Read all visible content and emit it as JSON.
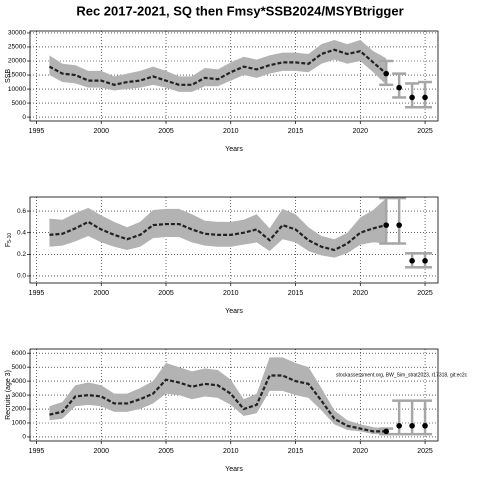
{
  "chart_data": [
    {
      "type": "line",
      "title": "Rec 2017-2021, SQ then Fmsy*SSB2024/MSYBtrigger",
      "xlabel": "Years",
      "ylabel": "SSB",
      "x": [
        1996,
        1997,
        1998,
        1999,
        2000,
        2001,
        2002,
        2003,
        2004,
        2005,
        2006,
        2007,
        2008,
        2009,
        2010,
        2011,
        2012,
        2013,
        2014,
        2015,
        2016,
        2017,
        2018,
        2019,
        2020,
        2021,
        2022
      ],
      "values": [
        18000,
        15500,
        15000,
        13000,
        13000,
        11500,
        12500,
        13000,
        14500,
        13000,
        11500,
        11500,
        14000,
        13500,
        16000,
        18000,
        17000,
        18500,
        19500,
        19500,
        19000,
        22500,
        24000,
        22500,
        23500,
        19500,
        15500
      ],
      "lower": [
        15000,
        12500,
        12000,
        10500,
        10500,
        9500,
        10000,
        10500,
        11500,
        10500,
        9000,
        9000,
        11000,
        11000,
        13000,
        15000,
        14000,
        15500,
        16500,
        16500,
        16000,
        19000,
        20500,
        19000,
        20000,
        16000,
        11500
      ],
      "upper": [
        22000,
        19000,
        18500,
        16500,
        16500,
        14500,
        15500,
        16500,
        18000,
        16500,
        14500,
        14500,
        17500,
        17000,
        19500,
        21500,
        20500,
        22000,
        23000,
        23000,
        22500,
        26000,
        27500,
        26000,
        27500,
        23500,
        21000
      ],
      "proj_x": [
        2022,
        2023,
        2024,
        2025
      ],
      "proj_values": [
        15500,
        10500,
        7000,
        7000
      ],
      "proj_lower": [
        11500,
        7000,
        3500,
        3500
      ],
      "proj_upper": [
        20000,
        15500,
        12000,
        12500
      ],
      "xlim": [
        1994.5,
        2026
      ],
      "xticks": [
        1995,
        2000,
        2005,
        2010,
        2015,
        2020,
        2025
      ],
      "ylim": [
        -1400,
        30700
      ],
      "yticks": [
        0,
        5000,
        10000,
        15000,
        20000,
        25000,
        30000
      ],
      "grid": true,
      "color": "#222222",
      "band_color": "#b3b3b3",
      "bar_color": "#a6a6a6"
    },
    {
      "type": "line",
      "xlabel": "Years",
      "ylabel": "F",
      "ylabel_sub": "5-10",
      "x": [
        1996,
        1997,
        1998,
        1999,
        2000,
        2001,
        2002,
        2003,
        2004,
        2005,
        2006,
        2007,
        2008,
        2009,
        2010,
        2011,
        2012,
        2013,
        2014,
        2015,
        2016,
        2017,
        2018,
        2019,
        2020,
        2021,
        2022
      ],
      "values": [
        0.38,
        0.39,
        0.44,
        0.5,
        0.43,
        0.38,
        0.34,
        0.38,
        0.47,
        0.48,
        0.48,
        0.43,
        0.39,
        0.38,
        0.38,
        0.4,
        0.43,
        0.33,
        0.47,
        0.43,
        0.33,
        0.27,
        0.24,
        0.3,
        0.4,
        0.44,
        0.47
      ],
      "lower": [
        0.27,
        0.28,
        0.32,
        0.37,
        0.31,
        0.27,
        0.24,
        0.27,
        0.35,
        0.36,
        0.36,
        0.31,
        0.28,
        0.27,
        0.27,
        0.29,
        0.31,
        0.23,
        0.34,
        0.31,
        0.23,
        0.19,
        0.17,
        0.21,
        0.29,
        0.31,
        0.3
      ],
      "upper": [
        0.53,
        0.52,
        0.58,
        0.63,
        0.56,
        0.5,
        0.45,
        0.5,
        0.61,
        0.62,
        0.62,
        0.57,
        0.51,
        0.5,
        0.5,
        0.52,
        0.57,
        0.44,
        0.62,
        0.57,
        0.45,
        0.37,
        0.34,
        0.4,
        0.54,
        0.61,
        0.72
      ],
      "proj_x": [
        2022,
        2023,
        2024,
        2025
      ],
      "proj_values": [
        0.47,
        0.47,
        0.14,
        0.14
      ],
      "proj_lower": [
        0.3,
        0.3,
        0.08,
        0.08
      ],
      "proj_upper": [
        0.72,
        0.72,
        0.21,
        0.21
      ],
      "xlim": [
        1994.5,
        2026
      ],
      "xticks": [
        1995,
        2000,
        2005,
        2010,
        2015,
        2020,
        2025
      ],
      "ylim": [
        -0.065,
        0.73
      ],
      "yticks": [
        {
          "value": 0,
          "label": "0.0"
        },
        0.2,
        0.4,
        0.6
      ],
      "grid": true,
      "color": "#222222",
      "band_color": "#b3b3b3",
      "bar_color": "#a6a6a6"
    },
    {
      "type": "line",
      "xlabel": "Years",
      "ylabel": "Recruits (age 3)",
      "annotation": "stockassessment.org, BW_Sim_strat2023, r17318, git:ec2c",
      "x": [
        1996,
        1997,
        1998,
        1999,
        2000,
        2001,
        2002,
        2003,
        2004,
        2005,
        2006,
        2007,
        2008,
        2009,
        2010,
        2011,
        2012,
        2013,
        2014,
        2015,
        2016,
        2017,
        2018,
        2019,
        2020,
        2021,
        2022
      ],
      "values": [
        1600,
        1800,
        2900,
        3000,
        2900,
        2400,
        2400,
        2700,
        3100,
        4100,
        3900,
        3600,
        3800,
        3700,
        3100,
        2000,
        2300,
        4400,
        4400,
        4000,
        3800,
        2600,
        1300,
        800,
        600,
        400,
        400
      ],
      "lower": [
        1200,
        1300,
        2200,
        2300,
        2200,
        1800,
        1800,
        2000,
        2400,
        3100,
        3000,
        2700,
        2900,
        2800,
        2300,
        1500,
        1700,
        3300,
        3300,
        3000,
        2800,
        1900,
        900,
        500,
        400,
        200,
        200
      ],
      "upper": [
        2200,
        2500,
        3700,
        3900,
        3700,
        3100,
        3100,
        3500,
        4000,
        5300,
        5000,
        4700,
        4900,
        4800,
        4100,
        2700,
        3100,
        5700,
        5700,
        5300,
        5000,
        3500,
        1900,
        1200,
        900,
        700,
        600
      ],
      "proj_x": [
        2022,
        2023,
        2024,
        2025
      ],
      "proj_values": [
        400,
        800,
        800,
        800
      ],
      "proj_lower": [
        200,
        200,
        200,
        200
      ],
      "proj_upper": [
        600,
        2600,
        2600,
        2600
      ],
      "xlim": [
        1994.5,
        2026
      ],
      "xticks": [
        1995,
        2000,
        2005,
        2010,
        2015,
        2020,
        2025
      ],
      "ylim": [
        -290,
        6300
      ],
      "yticks": [
        0,
        1000,
        2000,
        3000,
        4000,
        5000,
        6000
      ],
      "grid": true,
      "color": "#222222",
      "band_color": "#b3b3b3",
      "bar_color": "#a6a6a6"
    }
  ]
}
